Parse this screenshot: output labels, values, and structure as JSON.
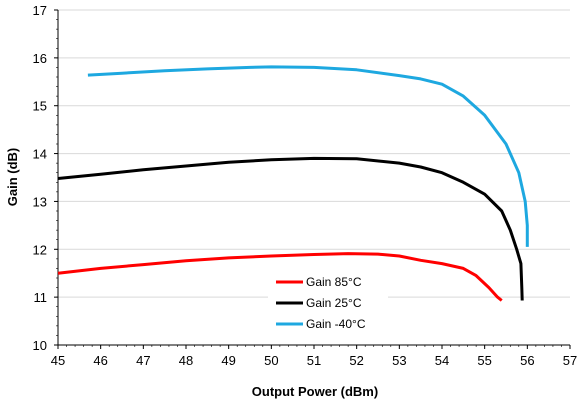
{
  "chart_data": {
    "type": "line",
    "xlabel": "Output Power (dBm)",
    "ylabel": "Gain (dB)",
    "xlim": [
      45,
      57
    ],
    "ylim": [
      10,
      17
    ],
    "xticks": [
      "45",
      "46",
      "47",
      "48",
      "49",
      "50",
      "51",
      "52",
      "53",
      "54",
      "55",
      "56",
      "57"
    ],
    "yticks": [
      "10",
      "11",
      "12",
      "13",
      "14",
      "15",
      "16",
      "17"
    ],
    "grid": "horizontal",
    "legend_position": "bottom-center",
    "series": [
      {
        "name": "Gain 85°C",
        "color": "#ff0000",
        "points": [
          [
            45.0,
            11.5
          ],
          [
            46.0,
            11.6
          ],
          [
            47.0,
            11.68
          ],
          [
            48.0,
            11.76
          ],
          [
            49.0,
            11.82
          ],
          [
            50.0,
            11.86
          ],
          [
            51.0,
            11.89
          ],
          [
            51.8,
            11.91
          ],
          [
            52.5,
            11.9
          ],
          [
            53.0,
            11.86
          ],
          [
            53.5,
            11.77
          ],
          [
            54.0,
            11.7
          ],
          [
            54.5,
            11.6
          ],
          [
            54.8,
            11.45
          ],
          [
            55.1,
            11.2
          ],
          [
            55.3,
            11.0
          ],
          [
            55.4,
            10.93
          ]
        ]
      },
      {
        "name": "Gain 25°C",
        "color": "#000000",
        "points": [
          [
            45.0,
            13.48
          ],
          [
            46.0,
            13.57
          ],
          [
            47.0,
            13.66
          ],
          [
            48.0,
            13.74
          ],
          [
            49.0,
            13.82
          ],
          [
            50.0,
            13.87
          ],
          [
            51.0,
            13.9
          ],
          [
            52.0,
            13.89
          ],
          [
            53.0,
            13.8
          ],
          [
            53.5,
            13.72
          ],
          [
            54.0,
            13.6
          ],
          [
            54.5,
            13.4
          ],
          [
            55.0,
            13.15
          ],
          [
            55.4,
            12.8
          ],
          [
            55.6,
            12.4
          ],
          [
            55.75,
            12.0
          ],
          [
            55.85,
            11.7
          ],
          [
            55.87,
            11.2
          ],
          [
            55.88,
            10.93
          ]
        ]
      },
      {
        "name": "Gain -40°C",
        "color": "#1ea8e0",
        "points": [
          [
            45.7,
            15.64
          ],
          [
            46.5,
            15.68
          ],
          [
            47.5,
            15.73
          ],
          [
            48.5,
            15.77
          ],
          [
            49.5,
            15.8
          ],
          [
            50.0,
            15.81
          ],
          [
            51.0,
            15.8
          ],
          [
            52.0,
            15.75
          ],
          [
            53.0,
            15.63
          ],
          [
            53.5,
            15.56
          ],
          [
            54.0,
            15.45
          ],
          [
            54.5,
            15.2
          ],
          [
            55.0,
            14.8
          ],
          [
            55.5,
            14.2
          ],
          [
            55.8,
            13.6
          ],
          [
            55.95,
            13.0
          ],
          [
            56.0,
            12.5
          ],
          [
            56.0,
            12.05
          ]
        ]
      }
    ]
  }
}
